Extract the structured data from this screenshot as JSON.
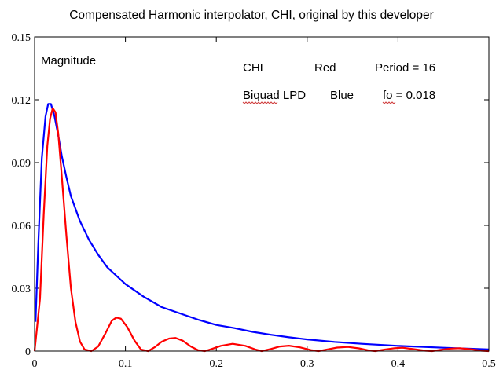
{
  "chart_data": {
    "type": "line",
    "title": "Compensated Harmonic interpolator, CHI, original by this developer",
    "xlabel": "",
    "ylabel": "",
    "xlim": [
      0,
      0.5
    ],
    "ylim": [
      0,
      0.15
    ],
    "x_ticks": [
      "0",
      "0.1",
      "0.2",
      "0.3",
      "0.4",
      "0.5"
    ],
    "y_ticks": [
      "0",
      "0.03",
      "0.06",
      "0.09",
      "0.12",
      "0.15"
    ],
    "grid": false,
    "annotations": {
      "magnitude": "Magnitude",
      "chi": "CHI",
      "red": "Red",
      "period": "Period = 16",
      "biquad": "Biquad LPD",
      "blue": "Blue",
      "fo": "fo = 0.018"
    },
    "series": [
      {
        "color": "#0000ff",
        "points": [
          [
            0.001,
            0.014
          ],
          [
            0.004,
            0.05
          ],
          [
            0.008,
            0.092
          ],
          [
            0.012,
            0.112
          ],
          [
            0.015,
            0.118
          ],
          [
            0.018,
            0.118
          ],
          [
            0.022,
            0.112
          ],
          [
            0.026,
            0.103
          ],
          [
            0.03,
            0.093
          ],
          [
            0.035,
            0.083
          ],
          [
            0.04,
            0.074
          ],
          [
            0.05,
            0.062
          ],
          [
            0.06,
            0.053
          ],
          [
            0.07,
            0.046
          ],
          [
            0.08,
            0.04
          ],
          [
            0.09,
            0.036
          ],
          [
            0.1,
            0.032
          ],
          [
            0.12,
            0.026
          ],
          [
            0.14,
            0.021
          ],
          [
            0.16,
            0.018
          ],
          [
            0.18,
            0.015
          ],
          [
            0.2,
            0.0125
          ],
          [
            0.22,
            0.011
          ],
          [
            0.24,
            0.0092
          ],
          [
            0.26,
            0.0078
          ],
          [
            0.28,
            0.0066
          ],
          [
            0.3,
            0.0056
          ],
          [
            0.33,
            0.0044
          ],
          [
            0.36,
            0.0035
          ],
          [
            0.4,
            0.0025
          ],
          [
            0.45,
            0.0016
          ],
          [
            0.5,
            0.0008
          ]
        ]
      },
      {
        "color": "#ff0000",
        "points": [
          [
            0.0,
            0.0
          ],
          [
            0.006,
            0.025
          ],
          [
            0.01,
            0.065
          ],
          [
            0.014,
            0.098
          ],
          [
            0.017,
            0.111
          ],
          [
            0.02,
            0.116
          ],
          [
            0.023,
            0.114
          ],
          [
            0.026,
            0.104
          ],
          [
            0.03,
            0.083
          ],
          [
            0.035,
            0.055
          ],
          [
            0.04,
            0.03
          ],
          [
            0.045,
            0.014
          ],
          [
            0.05,
            0.0045
          ],
          [
            0.055,
            0.0008
          ],
          [
            0.0625,
            0.0
          ],
          [
            0.07,
            0.0022
          ],
          [
            0.078,
            0.0085
          ],
          [
            0.085,
            0.0145
          ],
          [
            0.09,
            0.016
          ],
          [
            0.095,
            0.0155
          ],
          [
            0.102,
            0.0115
          ],
          [
            0.11,
            0.005
          ],
          [
            0.117,
            0.0008
          ],
          [
            0.125,
            0.0
          ],
          [
            0.132,
            0.0018
          ],
          [
            0.14,
            0.0045
          ],
          [
            0.148,
            0.006
          ],
          [
            0.155,
            0.0063
          ],
          [
            0.163,
            0.005
          ],
          [
            0.172,
            0.0022
          ],
          [
            0.18,
            0.0004
          ],
          [
            0.1875,
            0.0
          ],
          [
            0.195,
            0.001
          ],
          [
            0.205,
            0.0025
          ],
          [
            0.218,
            0.0035
          ],
          [
            0.232,
            0.0025
          ],
          [
            0.243,
            0.0008
          ],
          [
            0.25,
            0.0
          ],
          [
            0.26,
            0.001
          ],
          [
            0.27,
            0.0022
          ],
          [
            0.28,
            0.0026
          ],
          [
            0.292,
            0.0018
          ],
          [
            0.305,
            0.0004
          ],
          [
            0.3125,
            0.0
          ],
          [
            0.322,
            0.0008
          ],
          [
            0.333,
            0.0017
          ],
          [
            0.345,
            0.002
          ],
          [
            0.357,
            0.0013
          ],
          [
            0.368,
            0.0003
          ],
          [
            0.375,
            0.0
          ],
          [
            0.385,
            0.0007
          ],
          [
            0.396,
            0.0014
          ],
          [
            0.405,
            0.0016
          ],
          [
            0.418,
            0.0009
          ],
          [
            0.43,
            0.0002
          ],
          [
            0.4375,
            0.0
          ],
          [
            0.447,
            0.0006
          ],
          [
            0.458,
            0.0012
          ],
          [
            0.468,
            0.0014
          ],
          [
            0.48,
            0.0009
          ],
          [
            0.492,
            0.0002
          ],
          [
            0.5,
            0.0
          ]
        ]
      }
    ]
  }
}
